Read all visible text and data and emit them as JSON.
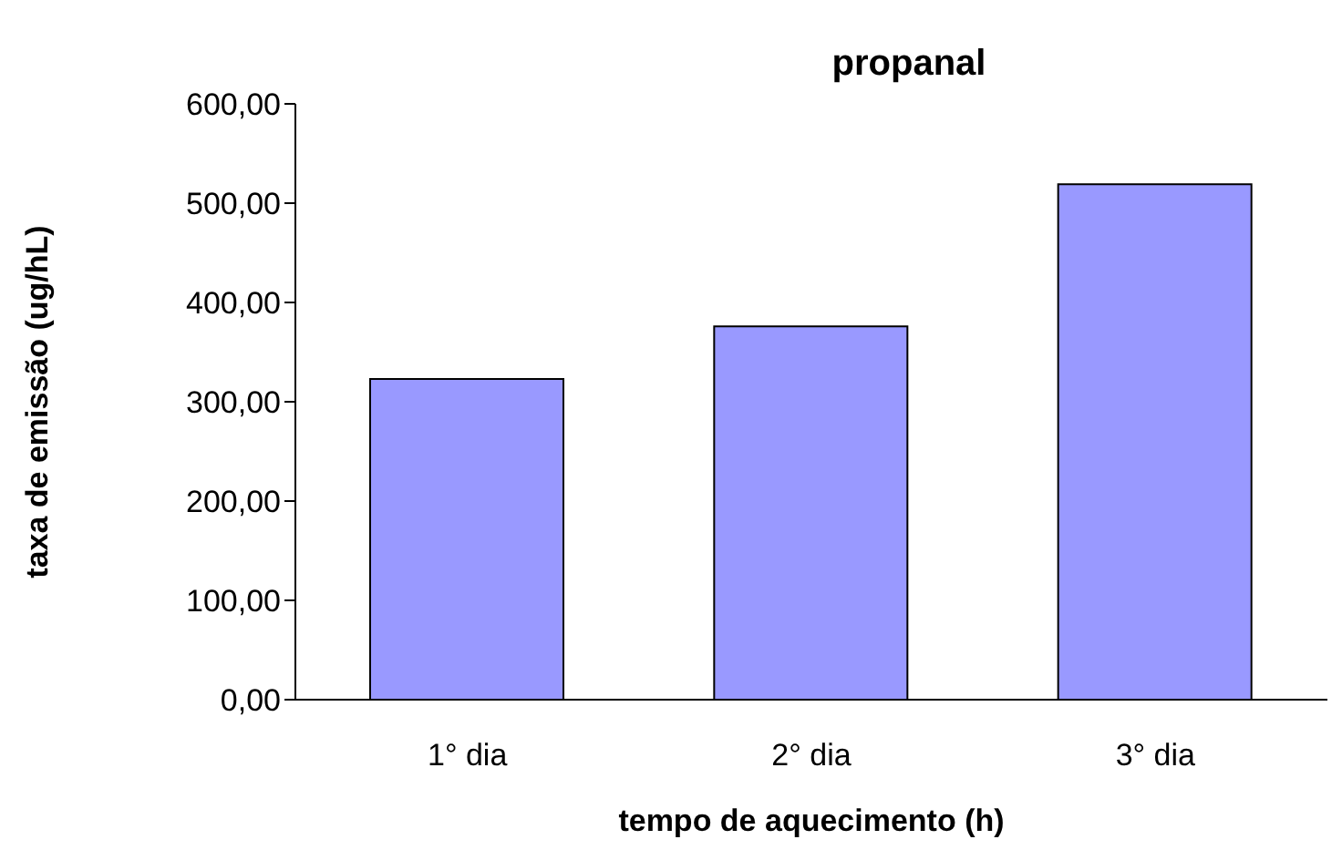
{
  "chart_data": {
    "type": "bar",
    "title": "propanal",
    "xlabel": "tempo de aquecimento (h)",
    "ylabel": "taxa de emissão (ug/hL)",
    "categories": [
      "1° dia",
      "2° dia",
      "3° dia"
    ],
    "series": [
      {
        "color": "#9999ff",
        "values": [
          323,
          376,
          519
        ]
      }
    ],
    "ylim": [
      0,
      600
    ],
    "yticks": [
      {
        "value": 0,
        "label": "0,00"
      },
      {
        "value": 100,
        "label": "100,00"
      },
      {
        "value": 200,
        "label": "200,00"
      },
      {
        "value": 300,
        "label": "300,00"
      },
      {
        "value": 400,
        "label": "400,00"
      },
      {
        "value": 500,
        "label": "500,00"
      },
      {
        "value": 600,
        "label": "600,00"
      }
    ],
    "grid": false,
    "legend": false
  }
}
